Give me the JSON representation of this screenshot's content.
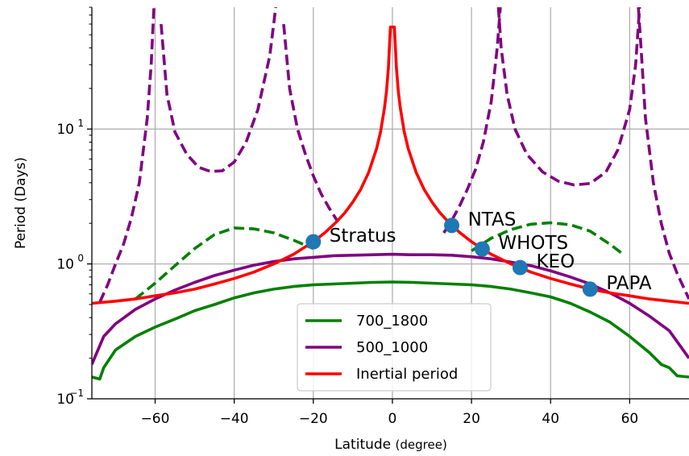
{
  "chart_data": {
    "type": "line",
    "xlabel": "Latitude",
    "xlabel_unit": "(degree)",
    "ylabel": "Period (Days)",
    "xlim": [
      -76,
      75
    ],
    "ylim": [
      0.1,
      80
    ],
    "yscale": "log",
    "x_ticks": [
      {
        "value": -60,
        "label": "−60"
      },
      {
        "value": -40,
        "label": "−40"
      },
      {
        "value": -20,
        "label": "−20"
      },
      {
        "value": 0,
        "label": "0"
      },
      {
        "value": 20,
        "label": "20"
      },
      {
        "value": 40,
        "label": "40"
      },
      {
        "value": 60,
        "label": "60"
      }
    ],
    "y_ticks": [
      {
        "value": 0.1,
        "base": "10",
        "exp": "−1"
      },
      {
        "value": 1,
        "base": "10",
        "exp": "0"
      },
      {
        "value": 10,
        "base": "10",
        "exp": "1"
      }
    ],
    "grid": true,
    "legend_position": "lower-center",
    "series": [
      {
        "name": "700_1800",
        "color": "#008000",
        "style": "solid",
        "legend": true,
        "points": [
          [
            -76,
            0.145
          ],
          [
            -74,
            0.14
          ],
          [
            -73,
            0.17
          ],
          [
            -70,
            0.23
          ],
          [
            -65,
            0.29
          ],
          [
            -60,
            0.34
          ],
          [
            -55,
            0.39
          ],
          [
            -50,
            0.45
          ],
          [
            -45,
            0.5
          ],
          [
            -40,
            0.56
          ],
          [
            -35,
            0.61
          ],
          [
            -30,
            0.65
          ],
          [
            -25,
            0.68
          ],
          [
            -20,
            0.7
          ],
          [
            -15,
            0.71
          ],
          [
            -10,
            0.72
          ],
          [
            -5,
            0.73
          ],
          [
            0,
            0.735
          ],
          [
            5,
            0.73
          ],
          [
            10,
            0.72
          ],
          [
            15,
            0.71
          ],
          [
            20,
            0.7
          ],
          [
            25,
            0.68
          ],
          [
            30,
            0.65
          ],
          [
            35,
            0.61
          ],
          [
            40,
            0.57
          ],
          [
            45,
            0.51
          ],
          [
            50,
            0.44
          ],
          [
            55,
            0.37
          ],
          [
            60,
            0.29
          ],
          [
            65,
            0.22
          ],
          [
            68,
            0.18
          ],
          [
            70,
            0.17
          ],
          [
            72,
            0.148
          ],
          [
            75,
            0.145
          ]
        ]
      },
      {
        "name": "",
        "color": "#008000",
        "style": "dashed",
        "legend": false,
        "points": [
          [
            -65,
            0.55
          ],
          [
            -60,
            0.72
          ],
          [
            -55,
            0.97
          ],
          [
            -50,
            1.3
          ],
          [
            -45,
            1.65
          ],
          [
            -40,
            1.85
          ],
          [
            -35,
            1.82
          ],
          [
            -30,
            1.7
          ],
          [
            -25,
            1.5
          ],
          [
            -20,
            1.3
          ]
        ]
      },
      {
        "name": "",
        "color": "#008000",
        "style": "dashed",
        "legend": false,
        "points": [
          [
            20,
            1.25
          ],
          [
            25,
            1.55
          ],
          [
            30,
            1.8
          ],
          [
            35,
            1.97
          ],
          [
            40,
            2.02
          ],
          [
            45,
            1.95
          ],
          [
            50,
            1.75
          ],
          [
            55,
            1.4
          ],
          [
            58,
            1.2
          ]
        ]
      },
      {
        "name": "500_1000",
        "color": "#800080",
        "style": "solid",
        "legend": true,
        "points": [
          [
            -76,
            0.18
          ],
          [
            -73,
            0.29
          ],
          [
            -70,
            0.36
          ],
          [
            -65,
            0.46
          ],
          [
            -60,
            0.55
          ],
          [
            -55,
            0.64
          ],
          [
            -50,
            0.73
          ],
          [
            -45,
            0.82
          ],
          [
            -40,
            0.9
          ],
          [
            -35,
            0.98
          ],
          [
            -30,
            1.04
          ],
          [
            -25,
            1.09
          ],
          [
            -20,
            1.12
          ],
          [
            -15,
            1.15
          ],
          [
            -10,
            1.16
          ],
          [
            -5,
            1.17
          ],
          [
            0,
            1.18
          ],
          [
            5,
            1.17
          ],
          [
            10,
            1.17
          ],
          [
            15,
            1.16
          ],
          [
            20,
            1.13
          ],
          [
            25,
            1.09
          ],
          [
            30,
            1.03
          ],
          [
            35,
            0.97
          ],
          [
            40,
            0.89
          ],
          [
            45,
            0.8
          ],
          [
            50,
            0.71
          ],
          [
            55,
            0.61
          ],
          [
            60,
            0.51
          ],
          [
            65,
            0.41
          ],
          [
            70,
            0.32
          ],
          [
            75,
            0.2
          ]
        ]
      },
      {
        "name": "",
        "color": "#800080",
        "style": "dashed",
        "legend": false,
        "points": [
          [
            -74,
            0.52
          ],
          [
            -72,
            0.7
          ],
          [
            -70,
            1.0
          ],
          [
            -68,
            1.4
          ],
          [
            -66,
            2.2
          ],
          [
            -64,
            4.0
          ],
          [
            -62,
            12
          ],
          [
            -61,
            30
          ],
          [
            -60.3,
            80
          ]
        ]
      },
      {
        "name": "",
        "color": "#800080",
        "style": "dashed",
        "legend": false,
        "points": [
          [
            -58.5,
            60
          ],
          [
            -57,
            18
          ],
          [
            -55,
            9.5
          ],
          [
            -52,
            6.5
          ],
          [
            -49,
            5.2
          ],
          [
            -46,
            4.85
          ],
          [
            -43,
            4.9
          ],
          [
            -40,
            5.7
          ],
          [
            -37,
            8.0
          ],
          [
            -34,
            14
          ],
          [
            -31,
            35
          ],
          [
            -29.5,
            80
          ]
        ]
      },
      {
        "name": "",
        "color": "#800080",
        "style": "dashed",
        "legend": false,
        "points": [
          [
            -27.5,
            60
          ],
          [
            -26,
            20
          ],
          [
            -24,
            10
          ],
          [
            -22,
            6.5
          ],
          [
            -20,
            4.5
          ],
          [
            -18,
            3.3
          ],
          [
            -16,
            2.6
          ],
          [
            -14,
            2.1
          ]
        ]
      },
      {
        "name": "",
        "color": "#800080",
        "style": "dashed",
        "legend": false,
        "points": [
          [
            13,
            1.7
          ],
          [
            15,
            2.1
          ],
          [
            17,
            2.7
          ],
          [
            19,
            3.6
          ],
          [
            21,
            5.0
          ],
          [
            23,
            8.0
          ],
          [
            25,
            16
          ],
          [
            26.5,
            40
          ],
          [
            27.3,
            80
          ]
        ]
      },
      {
        "name": "",
        "color": "#800080",
        "style": "dashed",
        "legend": false,
        "points": [
          [
            26.8,
            80
          ],
          [
            27.5,
            40
          ],
          [
            29,
            18
          ],
          [
            31,
            10
          ],
          [
            34,
            6.5
          ],
          [
            38,
            4.8
          ],
          [
            42,
            4.1
          ],
          [
            46,
            3.85
          ],
          [
            50,
            3.95
          ],
          [
            54,
            4.8
          ],
          [
            57,
            7.0
          ],
          [
            60,
            14
          ],
          [
            61.5,
            30
          ],
          [
            62.5,
            80
          ]
        ]
      },
      {
        "name": "",
        "color": "#800080",
        "style": "dashed",
        "legend": false,
        "points": [
          [
            62.2,
            80
          ],
          [
            63,
            35
          ],
          [
            64,
            12
          ],
          [
            66,
            4.0
          ],
          [
            68,
            2.0
          ],
          [
            70,
            1.2
          ],
          [
            72,
            0.85
          ],
          [
            75,
            0.55
          ]
        ]
      },
      {
        "name": "Inertial period",
        "color": "#ff0000",
        "style": "solid",
        "legend": true,
        "points": [
          [
            -76,
            0.51
          ],
          [
            -70,
            0.53
          ],
          [
            -65,
            0.55
          ],
          [
            -60,
            0.58
          ],
          [
            -55,
            0.61
          ],
          [
            -50,
            0.65
          ],
          [
            -45,
            0.71
          ],
          [
            -40,
            0.78
          ],
          [
            -35,
            0.87
          ],
          [
            -30,
            1.0
          ],
          [
            -25,
            1.18
          ],
          [
            -20,
            1.46
          ],
          [
            -17,
            1.71
          ],
          [
            -14,
            2.07
          ],
          [
            -12,
            2.4
          ],
          [
            -10,
            2.88
          ],
          [
            -8,
            3.58
          ],
          [
            -6,
            4.77
          ],
          [
            -4,
            7.15
          ],
          [
            -3,
            9.5
          ],
          [
            -2,
            14.3
          ],
          [
            -1.5,
            19
          ],
          [
            -1,
            28.6
          ],
          [
            -0.5,
            57
          ],
          [
            0,
            57
          ],
          [
            0.5,
            57
          ],
          [
            1,
            28.6
          ],
          [
            1.5,
            19
          ],
          [
            2,
            14.3
          ],
          [
            3,
            9.5
          ],
          [
            4,
            7.15
          ],
          [
            6,
            4.77
          ],
          [
            8,
            3.58
          ],
          [
            10,
            2.88
          ],
          [
            12,
            2.4
          ],
          [
            14,
            2.07
          ],
          [
            17,
            1.71
          ],
          [
            20,
            1.46
          ],
          [
            25,
            1.18
          ],
          [
            30,
            1.0
          ],
          [
            35,
            0.87
          ],
          [
            40,
            0.78
          ],
          [
            45,
            0.71
          ],
          [
            50,
            0.65
          ],
          [
            55,
            0.61
          ],
          [
            60,
            0.58
          ],
          [
            65,
            0.55
          ],
          [
            70,
            0.53
          ],
          [
            75,
            0.51
          ]
        ]
      }
    ],
    "stations": [
      {
        "name": "Stratus",
        "lat": -20,
        "period": 1.46
      },
      {
        "name": "NTAS",
        "lat": 15,
        "period": 1.93
      },
      {
        "name": "WHOTS",
        "lat": 22.7,
        "period": 1.29
      },
      {
        "name": "KEO",
        "lat": 32.3,
        "period": 0.94
      },
      {
        "name": "PAPA",
        "lat": 50,
        "period": 0.65
      }
    ],
    "station_color": "#1f77b4",
    "grid_color": "#b0b0b0"
  }
}
